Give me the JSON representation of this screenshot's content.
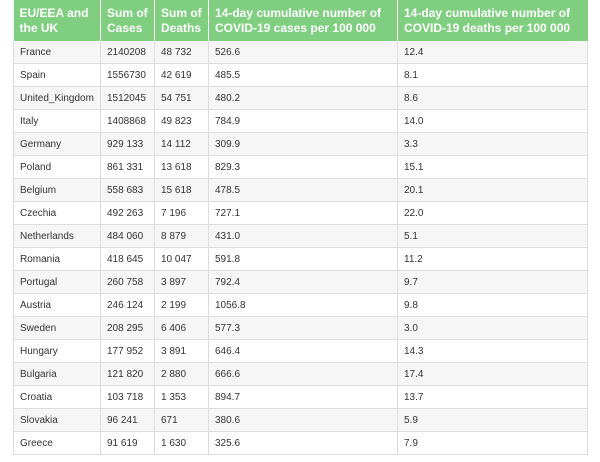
{
  "table": {
    "headers": [
      "EU/EEA and the UK",
      "Sum of Cases",
      "Sum of Deaths",
      "14-day cumulative number of COVID-19 cases per 100 000",
      "14-day cumulative number of COVID-19 deaths per 100 000"
    ],
    "rows": [
      [
        "France",
        "2140208",
        "48 732",
        "526.6",
        "12.4"
      ],
      [
        "Spain",
        "1556730",
        "42 619",
        "485.5",
        "8.1"
      ],
      [
        "United_Kingdom",
        "1512045",
        "54 751",
        "480.2",
        "8.6"
      ],
      [
        "Italy",
        "1408868",
        "49 823",
        "784.9",
        "14.0"
      ],
      [
        "Germany",
        "929 133",
        "14 112",
        "309.9",
        "3.3"
      ],
      [
        "Poland",
        "861 331",
        "13 618",
        "829.3",
        "15.1"
      ],
      [
        "Belgium",
        "558 683",
        "15 618",
        "478.5",
        "20.1"
      ],
      [
        "Czechia",
        "492 263",
        "7 196",
        "727.1",
        "22.0"
      ],
      [
        "Netherlands",
        "484 060",
        "8 879",
        "431.0",
        "5.1"
      ],
      [
        "Romania",
        "418 645",
        "10 047",
        "591.8",
        "11.2"
      ],
      [
        "Portugal",
        "260 758",
        "3 897",
        "792.4",
        "9.7"
      ],
      [
        "Austria",
        "246 124",
        "2 199",
        "1056.8",
        "9.8"
      ],
      [
        "Sweden",
        "208 295",
        "6 406",
        "577.3",
        "3.0"
      ],
      [
        "Hungary",
        "177 952",
        "3 891",
        "646.4",
        "14.3"
      ],
      [
        "Bulgaria",
        "121 820",
        "2 880",
        "666.6",
        "17.4"
      ],
      [
        "Croatia",
        "103 718",
        "1 353",
        "894.7",
        "13.7"
      ],
      [
        "Slovakia",
        "96 241",
        "671",
        "380.6",
        "5.9"
      ],
      [
        "Greece",
        "91 619",
        "1 630",
        "325.6",
        "7.9"
      ]
    ]
  },
  "colors": {
    "header_bg": "#80cf80",
    "header_text": "#ffffff",
    "row_alt_bg": "#f6f6f6",
    "border": "#dcdcdc"
  }
}
